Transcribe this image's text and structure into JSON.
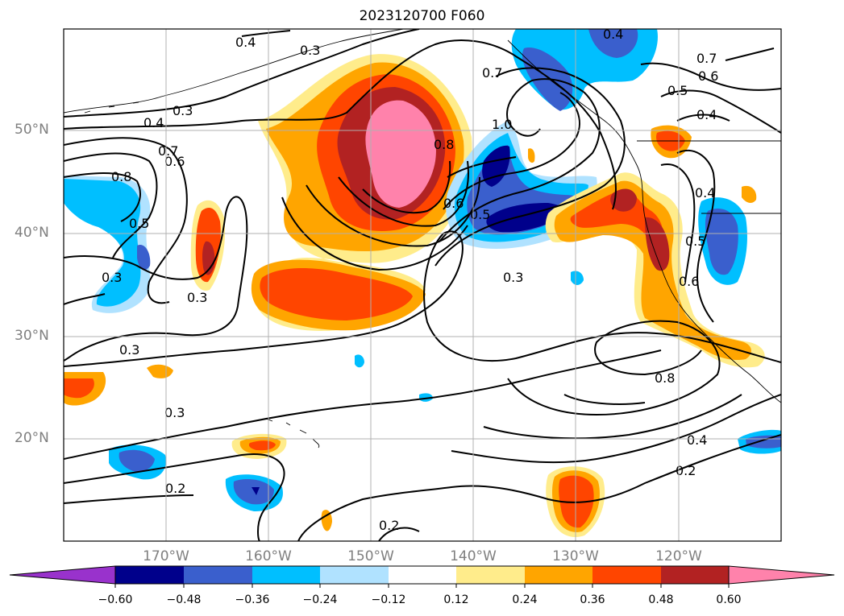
{
  "title": "2023120700 F060",
  "lat_labels": [
    "50°N",
    "40°N",
    "30°N",
    "20°N"
  ],
  "lon_labels": [
    "170°W",
    "160°W",
    "150°W",
    "140°W",
    "130°W",
    "120°W"
  ],
  "colorbar": {
    "colors": [
      "#9932cc",
      "#00008b",
      "#3a5fcd",
      "#00bfff",
      "#b0e2ff",
      "#ffffff",
      "#ffec8b",
      "#ffa500",
      "#ff4500",
      "#b22222",
      "#ff82ab"
    ],
    "tick_labels": [
      "−0.60",
      "−0.48",
      "−0.36",
      "−0.24",
      "−0.12",
      "0.12",
      "0.24",
      "0.36",
      "0.48",
      "0.60"
    ]
  },
  "contour_labels": [
    "0.4",
    "0.3",
    "0.4",
    "0.7",
    "0.6",
    "0.5",
    "0.4",
    "0.3",
    "0.4",
    "0.8",
    "0.6",
    "0.7",
    "0.7",
    "1.0",
    "0.8",
    "0.6",
    "0.5",
    "0.5",
    "0.3",
    "0.3",
    "0.3",
    "0.3",
    "0.8",
    "0.4",
    "0.2",
    "0.3",
    "0.2",
    "0.2",
    "0.4",
    "0.5",
    "0.6"
  ]
}
